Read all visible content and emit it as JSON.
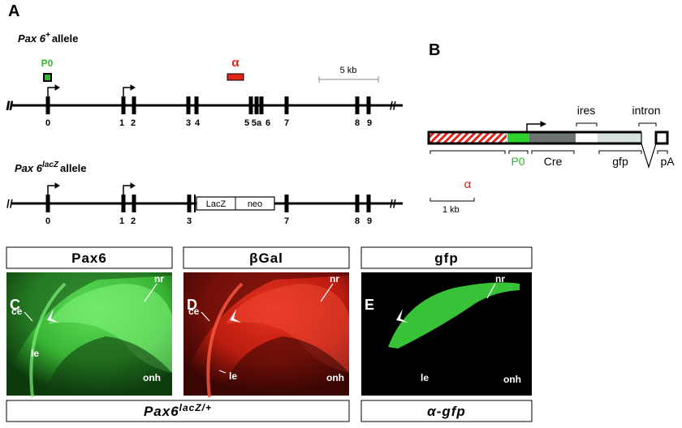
{
  "panel_a": {
    "letter": "A",
    "wildtype": {
      "gene": "Pax 6",
      "superscript": "+",
      "suffix": "allele",
      "exons": [
        "0",
        "1",
        "2",
        "3",
        "4",
        "5",
        "5a",
        "6",
        "7",
        "8",
        "9"
      ]
    },
    "p0": "P0",
    "alpha": "α",
    "scale": "5 kb",
    "mutant": {
      "gene": "Pax 6",
      "superscript": "lacZ",
      "suffix": "allele",
      "exons": [
        "0",
        "1",
        "2",
        "3",
        "7",
        "8",
        "9"
      ],
      "lacz": "LacZ",
      "neo": "neo"
    }
  },
  "panel_b": {
    "letter": "B",
    "ires": "ires",
    "intron": "intron",
    "alpha": "α",
    "p0": "P0",
    "cre": "Cre",
    "gfp": "gfp",
    "pa": "pA",
    "scale": "1 kb"
  },
  "images": [
    {
      "letter": "C",
      "header": "Pax6",
      "labels": [
        "ce",
        "nr",
        "le",
        "onh"
      ]
    },
    {
      "letter": "D",
      "header": "βGal",
      "labels": [
        "ce",
        "nr",
        "le",
        "onh"
      ]
    },
    {
      "letter": "E",
      "header": "gfp",
      "labels": [
        "nr",
        "le",
        "onh"
      ]
    }
  ],
  "footers": [
    {
      "text": "Pax6",
      "superscript": "lacZ/+"
    },
    {
      "text": "α-gfp"
    }
  ]
}
